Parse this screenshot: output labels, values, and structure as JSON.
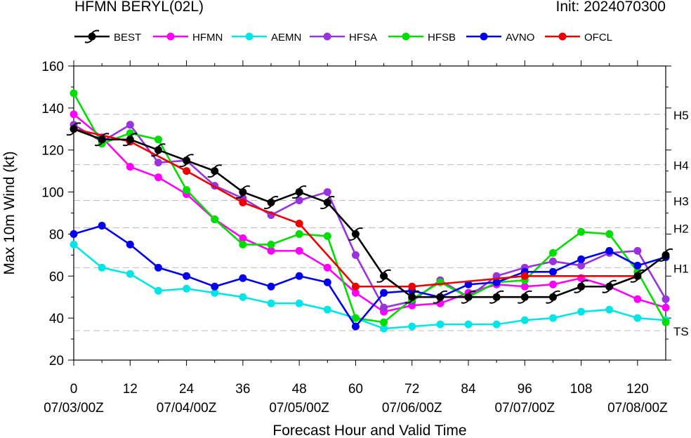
{
  "header": {
    "title": "HFMN BERYL(02L)",
    "init": "Init: 2024070300"
  },
  "chart_data": {
    "type": "line",
    "title": "HFMN BERYL(02L)",
    "xlabel": "Forecast Hour and Valid Time",
    "ylabel": "Max 10m Wind (kt)",
    "xlim": [
      0,
      126
    ],
    "ylim": [
      20,
      160
    ],
    "x_ticks": [
      0,
      12,
      24,
      36,
      48,
      60,
      72,
      84,
      96,
      108,
      120
    ],
    "x_tick_labels": [
      "0",
      "12",
      "24",
      "36",
      "48",
      "60",
      "72",
      "84",
      "96",
      "108",
      "120"
    ],
    "date_tick_labels": [
      {
        "x": 0,
        "label": "07/03/00Z"
      },
      {
        "x": 24,
        "label": "07/04/00Z"
      },
      {
        "x": 48,
        "label": "07/05/00Z"
      },
      {
        "x": 72,
        "label": "07/06/00Z"
      },
      {
        "x": 96,
        "label": "07/07/00Z"
      },
      {
        "x": 120,
        "label": "07/08/00Z"
      }
    ],
    "y_ticks": [
      20,
      40,
      60,
      80,
      100,
      120,
      140,
      160
    ],
    "grid": "dashed reference lines at category thresholds",
    "legend": "top",
    "categories_right": [
      {
        "y": 34,
        "label": "TS"
      },
      {
        "y": 64,
        "label": "H1"
      },
      {
        "y": 83,
        "label": "H2"
      },
      {
        "y": 96,
        "label": "H3"
      },
      {
        "y": 113,
        "label": "H4"
      },
      {
        "y": 137,
        "label": "H5"
      }
    ],
    "series": [
      {
        "name": "HFMN",
        "color": "#ff00ff",
        "marker": "circle",
        "x": [
          0,
          6,
          12,
          18,
          24,
          30,
          36,
          42,
          48,
          54,
          60,
          66,
          72,
          78,
          84,
          90,
          96,
          102,
          108,
          114,
          120,
          126
        ],
        "y": [
          137,
          126,
          112,
          107,
          99,
          87,
          78,
          72,
          72,
          64,
          52,
          43,
          46,
          47,
          52,
          56,
          55,
          56,
          59,
          55,
          49,
          45
        ]
      },
      {
        "name": "AEMN",
        "color": "#00e5e5",
        "marker": "circle",
        "x": [
          0,
          6,
          12,
          18,
          24,
          30,
          36,
          42,
          48,
          54,
          60,
          66,
          72,
          78,
          84,
          90,
          96,
          102,
          108,
          114,
          120,
          126
        ],
        "y": [
          75,
          64,
          61,
          53,
          54,
          52,
          50,
          47,
          47,
          44,
          40,
          35,
          36,
          37,
          37,
          37,
          39,
          40,
          43,
          44,
          40,
          39
        ]
      },
      {
        "name": "HFSA",
        "color": "#9933dd",
        "marker": "circle",
        "x": [
          0,
          6,
          12,
          18,
          24,
          30,
          36,
          42,
          48,
          54,
          60,
          66,
          72,
          78,
          84,
          90,
          96,
          102,
          108,
          114,
          120,
          126
        ],
        "y": [
          132,
          124,
          132,
          114,
          115,
          103,
          97,
          89,
          96,
          100,
          70,
          45,
          48,
          58,
          50,
          60,
          64,
          67,
          65,
          71,
          72,
          49
        ]
      },
      {
        "name": "HFSB",
        "color": "#00dd00",
        "marker": "circle",
        "x": [
          0,
          6,
          12,
          18,
          24,
          30,
          36,
          42,
          48,
          54,
          60,
          66,
          72,
          78,
          84,
          90,
          96,
          102,
          108,
          114,
          120,
          126
        ],
        "y": [
          147,
          123,
          128,
          125,
          101,
          87,
          75,
          75,
          80,
          79,
          40,
          38,
          49,
          57,
          50,
          57,
          58,
          71,
          81,
          80,
          62,
          38
        ]
      },
      {
        "name": "AVNO",
        "color": "#0000ee",
        "marker": "circle",
        "x": [
          0,
          6,
          12,
          18,
          24,
          30,
          36,
          42,
          48,
          54,
          60,
          66,
          72,
          78,
          84,
          90,
          96,
          102,
          108,
          114,
          120,
          126
        ],
        "y": [
          80,
          84,
          75,
          64,
          60,
          55,
          59,
          55,
          60,
          57,
          36,
          52,
          53,
          50,
          56,
          57,
          62,
          62,
          68,
          72,
          65,
          69
        ]
      },
      {
        "name": "OFCL",
        "color": "#ee0000",
        "marker": "circle",
        "x": [
          0,
          12,
          24,
          36,
          48,
          60,
          72,
          96,
          120
        ],
        "y": [
          130,
          124,
          110,
          95,
          85,
          55,
          55,
          60,
          60
        ]
      },
      {
        "name": "BEST",
        "color": "#000000",
        "marker": "hurricane",
        "x": [
          0,
          6,
          12,
          18,
          24,
          30,
          36,
          42,
          48,
          54,
          60,
          66,
          72,
          78,
          84,
          90,
          96,
          102,
          108,
          114,
          120,
          126
        ],
        "y": [
          130,
          125,
          125,
          120,
          115,
          110,
          100,
          95,
          100,
          95,
          80,
          60,
          50,
          50,
          50,
          50,
          50,
          50,
          55,
          55,
          60,
          70
        ]
      }
    ],
    "legend_order": [
      "BEST",
      "HFMN",
      "AEMN",
      "HFSA",
      "HFSB",
      "AVNO",
      "OFCL"
    ]
  }
}
